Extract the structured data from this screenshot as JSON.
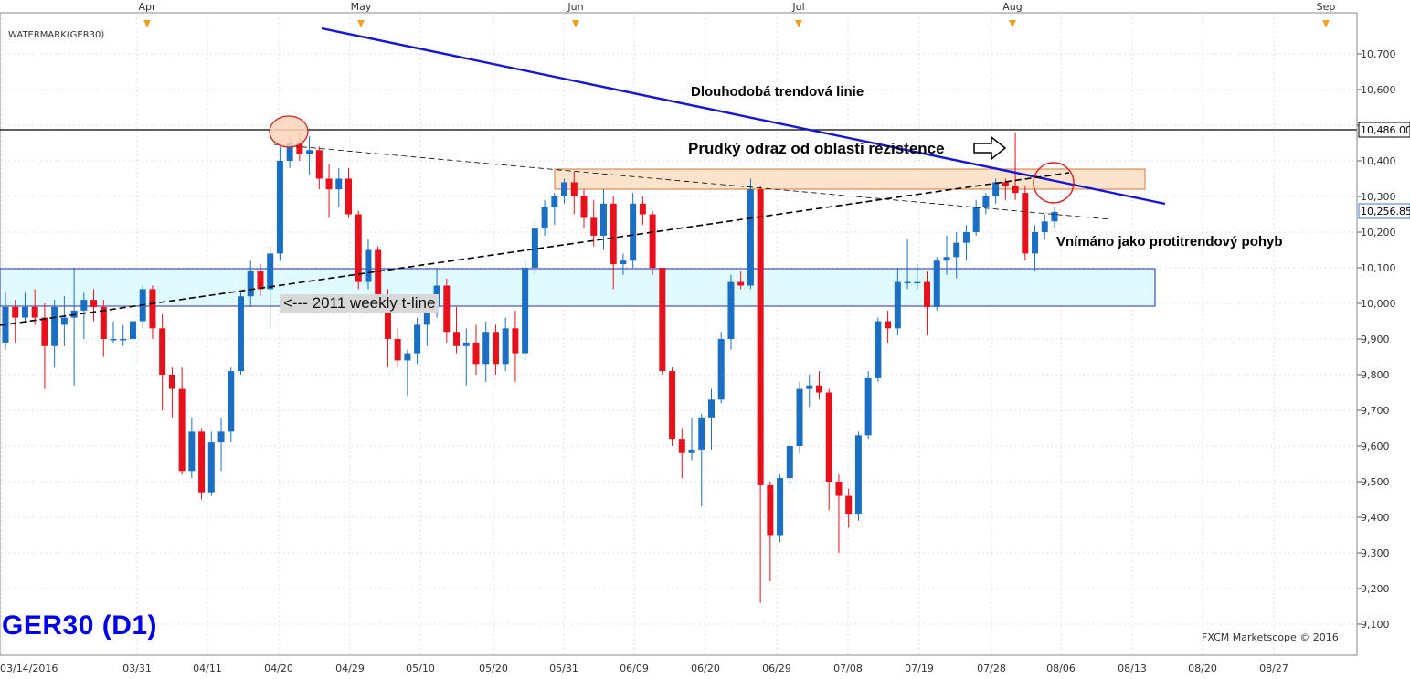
{
  "chart_data": {
    "type": "candlestick",
    "symbol_title": "GER30 (D1)",
    "watermark": "WATERMARK(GER30)",
    "copyright": "FXCM Marketscope © 2016",
    "y_range": [
      9050,
      10800
    ],
    "y_ticks": [
      "10,700",
      "10,600",
      "10,500",
      "10,400",
      "10,300",
      "10,200",
      "10,100",
      "10,000",
      "9,900",
      "9,800",
      "9,700",
      "9,600",
      "9,500",
      "9,400",
      "9,300",
      "9,200",
      "9,100"
    ],
    "x_ticks": [
      "03/14/2016",
      "03/31",
      "04/11",
      "04/20",
      "04/29",
      "05/10",
      "05/20",
      "05/31",
      "06/09",
      "06/20",
      "06/29",
      "07/08",
      "07/19",
      "07/28",
      "08/06",
      "08/13",
      "08/20",
      "08/27"
    ],
    "months": [
      "Apr",
      "May",
      "Jun",
      "Jul",
      "Aug",
      "Sep"
    ],
    "price_labels": {
      "resistance": "10,486.00",
      "current": "10,256.85"
    },
    "horizontal_level": 10486,
    "current_price": 10256.85,
    "annotations": {
      "trend_label": "Dlouhodobá trendová linie",
      "bounce_label": "Prudký odraz od oblasti rezistence",
      "counter_label": "Vnímáno jako protitrendový pohyb",
      "tline_label": "<--- 2011 weekly t-line"
    },
    "candles": [
      {
        "o": 9890,
        "h": 10030,
        "l": 9870,
        "c": 9990
      },
      {
        "o": 9990,
        "h": 10010,
        "l": 9890,
        "c": 9960
      },
      {
        "o": 9960,
        "h": 10030,
        "l": 9950,
        "c": 9990
      },
      {
        "o": 9990,
        "h": 10040,
        "l": 9940,
        "c": 9960
      },
      {
        "o": 9960,
        "h": 10000,
        "l": 9760,
        "c": 9880
      },
      {
        "o": 9880,
        "h": 10010,
        "l": 9820,
        "c": 9990
      },
      {
        "o": 9940,
        "h": 10020,
        "l": 9880,
        "c": 9960
      },
      {
        "o": 9960,
        "h": 10100,
        "l": 9770,
        "c": 9980
      },
      {
        "o": 9980,
        "h": 10030,
        "l": 9900,
        "c": 10010
      },
      {
        "o": 10010,
        "h": 10040,
        "l": 9950,
        "c": 9990
      },
      {
        "o": 9990,
        "h": 10010,
        "l": 9850,
        "c": 9900
      },
      {
        "o": 9900,
        "h": 9950,
        "l": 9890,
        "c": 9900
      },
      {
        "o": 9900,
        "h": 9940,
        "l": 9880,
        "c": 9900
      },
      {
        "o": 9900,
        "h": 9960,
        "l": 9840,
        "c": 9950
      },
      {
        "o": 9950,
        "h": 10050,
        "l": 9930,
        "c": 10040
      },
      {
        "o": 10040,
        "h": 10050,
        "l": 9900,
        "c": 9930
      },
      {
        "o": 9930,
        "h": 9970,
        "l": 9700,
        "c": 9800
      },
      {
        "o": 9800,
        "h": 9820,
        "l": 9680,
        "c": 9760
      },
      {
        "o": 9760,
        "h": 9820,
        "l": 9520,
        "c": 9530
      },
      {
        "o": 9530,
        "h": 9680,
        "l": 9510,
        "c": 9640
      },
      {
        "o": 9640,
        "h": 9650,
        "l": 9450,
        "c": 9470
      },
      {
        "o": 9470,
        "h": 9640,
        "l": 9460,
        "c": 9610
      },
      {
        "o": 9610,
        "h": 9680,
        "l": 9530,
        "c": 9640
      },
      {
        "o": 9640,
        "h": 9820,
        "l": 9610,
        "c": 9810
      },
      {
        "o": 9810,
        "h": 10030,
        "l": 9800,
        "c": 10020
      },
      {
        "o": 10020,
        "h": 10120,
        "l": 9990,
        "c": 10090
      },
      {
        "o": 10090,
        "h": 10110,
        "l": 10020,
        "c": 10040
      },
      {
        "o": 10040,
        "h": 10160,
        "l": 9930,
        "c": 10140
      },
      {
        "o": 10140,
        "h": 10440,
        "l": 10120,
        "c": 10400
      },
      {
        "o": 10400,
        "h": 10470,
        "l": 10380,
        "c": 10450
      },
      {
        "o": 10450,
        "h": 10480,
        "l": 10400,
        "c": 10420
      },
      {
        "o": 10420,
        "h": 10470,
        "l": 10360,
        "c": 10430
      },
      {
        "o": 10430,
        "h": 10440,
        "l": 10320,
        "c": 10350
      },
      {
        "o": 10350,
        "h": 10390,
        "l": 10240,
        "c": 10320
      },
      {
        "o": 10320,
        "h": 10380,
        "l": 10270,
        "c": 10350
      },
      {
        "o": 10350,
        "h": 10380,
        "l": 10240,
        "c": 10250
      },
      {
        "o": 10250,
        "h": 10260,
        "l": 10040,
        "c": 10060
      },
      {
        "o": 10060,
        "h": 10180,
        "l": 10040,
        "c": 10150
      },
      {
        "o": 10150,
        "h": 10160,
        "l": 9980,
        "c": 9990
      },
      {
        "o": 9990,
        "h": 10040,
        "l": 9820,
        "c": 9900
      },
      {
        "o": 9900,
        "h": 9930,
        "l": 9820,
        "c": 9840
      },
      {
        "o": 9840,
        "h": 9870,
        "l": 9740,
        "c": 9860
      },
      {
        "o": 9860,
        "h": 9960,
        "l": 9830,
        "c": 9940
      },
      {
        "o": 9940,
        "h": 10020,
        "l": 9880,
        "c": 9990
      },
      {
        "o": 9990,
        "h": 10100,
        "l": 9960,
        "c": 10050
      },
      {
        "o": 10050,
        "h": 10070,
        "l": 9890,
        "c": 9920
      },
      {
        "o": 9920,
        "h": 9990,
        "l": 9860,
        "c": 9880
      },
      {
        "o": 9880,
        "h": 9930,
        "l": 9770,
        "c": 9890
      },
      {
        "o": 9890,
        "h": 9940,
        "l": 9800,
        "c": 9830
      },
      {
        "o": 9830,
        "h": 9950,
        "l": 9780,
        "c": 9920
      },
      {
        "o": 9920,
        "h": 9940,
        "l": 9800,
        "c": 9830
      },
      {
        "o": 9830,
        "h": 9960,
        "l": 9810,
        "c": 9930
      },
      {
        "o": 9930,
        "h": 9980,
        "l": 9780,
        "c": 9860
      },
      {
        "o": 9860,
        "h": 10120,
        "l": 9840,
        "c": 10100
      },
      {
        "o": 10100,
        "h": 10230,
        "l": 10080,
        "c": 10210
      },
      {
        "o": 10210,
        "h": 10290,
        "l": 10190,
        "c": 10270
      },
      {
        "o": 10270,
        "h": 10310,
        "l": 10220,
        "c": 10300
      },
      {
        "o": 10300,
        "h": 10350,
        "l": 10280,
        "c": 10340
      },
      {
        "o": 10340,
        "h": 10370,
        "l": 10250,
        "c": 10300
      },
      {
        "o": 10300,
        "h": 10320,
        "l": 10210,
        "c": 10240
      },
      {
        "o": 10240,
        "h": 10290,
        "l": 10160,
        "c": 10190
      },
      {
        "o": 10190,
        "h": 10320,
        "l": 10150,
        "c": 10280
      },
      {
        "o": 10280,
        "h": 10300,
        "l": 10040,
        "c": 10110
      },
      {
        "o": 10110,
        "h": 10140,
        "l": 10080,
        "c": 10120
      },
      {
        "o": 10120,
        "h": 10310,
        "l": 10100,
        "c": 10280
      },
      {
        "o": 10280,
        "h": 10300,
        "l": 10220,
        "c": 10250
      },
      {
        "o": 10250,
        "h": 10260,
        "l": 10080,
        "c": 10100
      },
      {
        "o": 10100,
        "h": 10100,
        "l": 9800,
        "c": 9810
      },
      {
        "o": 9810,
        "h": 9820,
        "l": 9600,
        "c": 9620
      },
      {
        "o": 9620,
        "h": 9650,
        "l": 9510,
        "c": 9580
      },
      {
        "o": 9580,
        "h": 9680,
        "l": 9560,
        "c": 9590
      },
      {
        "o": 9590,
        "h": 9690,
        "l": 9430,
        "c": 9680
      },
      {
        "o": 9680,
        "h": 9760,
        "l": 9590,
        "c": 9730
      },
      {
        "o": 9730,
        "h": 9920,
        "l": 9720,
        "c": 9900
      },
      {
        "o": 9900,
        "h": 10080,
        "l": 9870,
        "c": 10060
      },
      {
        "o": 10060,
        "h": 10090,
        "l": 10040,
        "c": 10050
      },
      {
        "o": 10050,
        "h": 10350,
        "l": 10040,
        "c": 10320
      },
      {
        "o": 10320,
        "h": 10330,
        "l": 9160,
        "c": 9490
      },
      {
        "o": 9490,
        "h": 9500,
        "l": 9220,
        "c": 9350
      },
      {
        "o": 9350,
        "h": 9520,
        "l": 9330,
        "c": 9510
      },
      {
        "o": 9510,
        "h": 9620,
        "l": 9490,
        "c": 9600
      },
      {
        "o": 9600,
        "h": 9780,
        "l": 9580,
        "c": 9760
      },
      {
        "o": 9760,
        "h": 9800,
        "l": 9710,
        "c": 9770
      },
      {
        "o": 9770,
        "h": 9810,
        "l": 9730,
        "c": 9750
      },
      {
        "o": 9750,
        "h": 9760,
        "l": 9420,
        "c": 9500
      },
      {
        "o": 9500,
        "h": 9520,
        "l": 9300,
        "c": 9460
      },
      {
        "o": 9460,
        "h": 9480,
        "l": 9370,
        "c": 9410
      },
      {
        "o": 9410,
        "h": 9640,
        "l": 9390,
        "c": 9630
      },
      {
        "o": 9630,
        "h": 9810,
        "l": 9620,
        "c": 9790
      },
      {
        "o": 9790,
        "h": 9960,
        "l": 9780,
        "c": 9950
      },
      {
        "o": 9950,
        "h": 9980,
        "l": 9890,
        "c": 9930
      },
      {
        "o": 9930,
        "h": 10100,
        "l": 9910,
        "c": 10060
      },
      {
        "o": 10060,
        "h": 10180,
        "l": 10040,
        "c": 10060
      },
      {
        "o": 10060,
        "h": 10110,
        "l": 10040,
        "c": 10060
      },
      {
        "o": 10060,
        "h": 10090,
        "l": 9910,
        "c": 9990
      },
      {
        "o": 9990,
        "h": 10130,
        "l": 9980,
        "c": 10120
      },
      {
        "o": 10120,
        "h": 10190,
        "l": 10080,
        "c": 10130
      },
      {
        "o": 10130,
        "h": 10200,
        "l": 10070,
        "c": 10170
      },
      {
        "o": 10170,
        "h": 10220,
        "l": 10120,
        "c": 10200
      },
      {
        "o": 10200,
        "h": 10290,
        "l": 10190,
        "c": 10270
      },
      {
        "o": 10270,
        "h": 10310,
        "l": 10250,
        "c": 10300
      },
      {
        "o": 10300,
        "h": 10350,
        "l": 10280,
        "c": 10340
      },
      {
        "o": 10340,
        "h": 10350,
        "l": 10290,
        "c": 10330
      },
      {
        "o": 10330,
        "h": 10480,
        "l": 10290,
        "c": 10310
      },
      {
        "o": 10310,
        "h": 10330,
        "l": 10120,
        "c": 10140
      },
      {
        "o": 10140,
        "h": 10220,
        "l": 10090,
        "c": 10200
      },
      {
        "o": 10200,
        "h": 10250,
        "l": 10180,
        "c": 10230
      },
      {
        "o": 10230,
        "h": 10270,
        "l": 10210,
        "c": 10256.85
      }
    ]
  }
}
